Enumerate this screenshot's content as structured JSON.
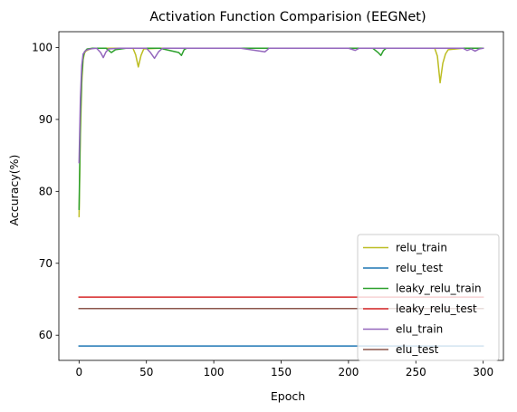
{
  "chart_data": {
    "type": "line",
    "title": "Activation Function Comparision (EEGNet)",
    "xlabel": "Epoch",
    "ylabel": "Accuracy(%)",
    "xlim": [
      -15,
      315
    ],
    "ylim": [
      56.5,
      102.2
    ],
    "xticks": [
      0,
      50,
      100,
      150,
      200,
      250,
      300
    ],
    "yticks": [
      60,
      70,
      80,
      90,
      100
    ],
    "grid": false,
    "legend_position": "lower right",
    "series": [
      {
        "name": "relu_train",
        "color": "#bcbd22",
        "points": [
          [
            0,
            76.5
          ],
          [
            1,
            88
          ],
          [
            2,
            95
          ],
          [
            3,
            98.3
          ],
          [
            4,
            99.2
          ],
          [
            5,
            99.5
          ],
          [
            7,
            99.7
          ],
          [
            10,
            99.9
          ],
          [
            20,
            99.9
          ],
          [
            40,
            99.9
          ],
          [
            42,
            99
          ],
          [
            44,
            97.3
          ],
          [
            46,
            98.9
          ],
          [
            48,
            99.8
          ],
          [
            60,
            99.9
          ],
          [
            100,
            99.9
          ],
          [
            200,
            99.9
          ],
          [
            264,
            99.9
          ],
          [
            266,
            98.8
          ],
          [
            268,
            95.1
          ],
          [
            270,
            97.8
          ],
          [
            272,
            99.1
          ],
          [
            274,
            99.7
          ],
          [
            285,
            99.9
          ],
          [
            300,
            99.9
          ]
        ]
      },
      {
        "name": "relu_test",
        "color": "#1f77b4",
        "points": [
          [
            0,
            58.5
          ],
          [
            300,
            58.5
          ]
        ]
      },
      {
        "name": "leaky_relu_train",
        "color": "#2ca02c",
        "points": [
          [
            0,
            77.5
          ],
          [
            1,
            90
          ],
          [
            2,
            96
          ],
          [
            3,
            98.6
          ],
          [
            4,
            99.4
          ],
          [
            6,
            99.8
          ],
          [
            10,
            99.9
          ],
          [
            20,
            99.9
          ],
          [
            24,
            99.3
          ],
          [
            27,
            99.7
          ],
          [
            35,
            99.9
          ],
          [
            60,
            99.9
          ],
          [
            74,
            99.3
          ],
          [
            76,
            98.9
          ],
          [
            78,
            99.7
          ],
          [
            80,
            99.9
          ],
          [
            150,
            99.9
          ],
          [
            218,
            99.9
          ],
          [
            222,
            99.3
          ],
          [
            224,
            98.9
          ],
          [
            226,
            99.6
          ],
          [
            228,
            99.9
          ],
          [
            300,
            99.9
          ]
        ]
      },
      {
        "name": "leaky_relu_test",
        "color": "#d62728",
        "points": [
          [
            0,
            65.3
          ],
          [
            300,
            65.3
          ]
        ]
      },
      {
        "name": "elu_train",
        "color": "#9467bd",
        "points": [
          [
            0,
            84
          ],
          [
            1,
            93
          ],
          [
            2,
            97.5
          ],
          [
            3,
            99.1
          ],
          [
            5,
            99.6
          ],
          [
            8,
            99.8
          ],
          [
            13,
            99.9
          ],
          [
            16,
            99.3
          ],
          [
            18,
            98.6
          ],
          [
            20,
            99.4
          ],
          [
            22,
            99.8
          ],
          [
            30,
            99.9
          ],
          [
            50,
            99.9
          ],
          [
            53,
            99.3
          ],
          [
            56,
            98.5
          ],
          [
            59,
            99.4
          ],
          [
            62,
            99.9
          ],
          [
            120,
            99.9
          ],
          [
            138,
            99.4
          ],
          [
            141,
            99.9
          ],
          [
            200,
            99.9
          ],
          [
            205,
            99.6
          ],
          [
            208,
            99.9
          ],
          [
            285,
            99.9
          ],
          [
            288,
            99.6
          ],
          [
            291,
            99.8
          ],
          [
            294,
            99.5
          ],
          [
            297,
            99.8
          ],
          [
            300,
            99.9
          ]
        ]
      },
      {
        "name": "elu_test",
        "color": "#8c564b",
        "points": [
          [
            0,
            63.7
          ],
          [
            300,
            63.7
          ]
        ]
      }
    ]
  }
}
